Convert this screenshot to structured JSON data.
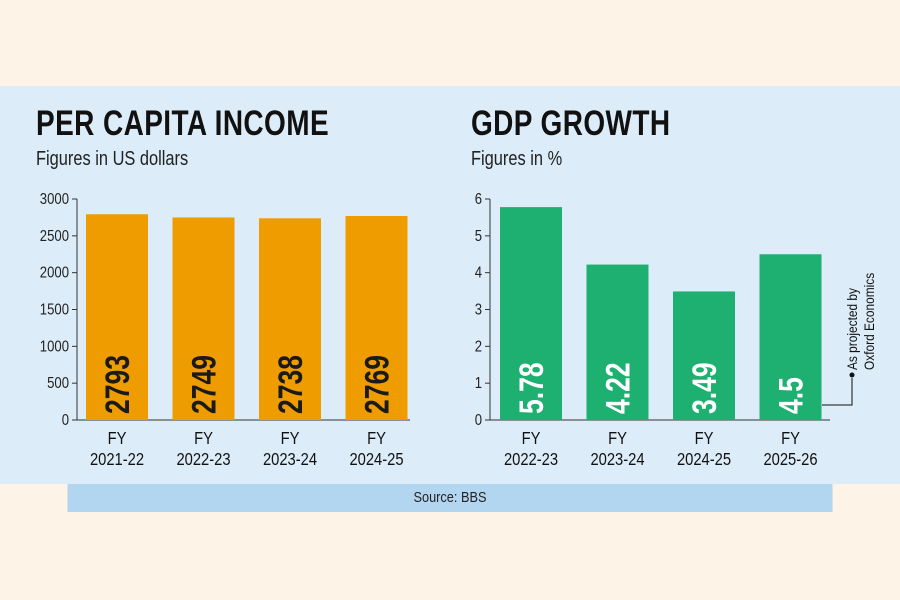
{
  "source": "Source: BBS",
  "colors": {
    "income_bar": "#ef9c00",
    "gdp_bar": "#1eb070",
    "panel": "#dcecf8",
    "page": "#fdf3e7",
    "source_bar": "#b3d6f0"
  },
  "chart_data": [
    {
      "type": "bar",
      "title": "PER CAPITA INCOME",
      "subtitle": "Figures in US dollars",
      "categories": [
        "FY\n2021-22",
        "FY\n2022-23",
        "FY\n2023-24",
        "FY\n2024-25"
      ],
      "values": [
        2793,
        2749,
        2738,
        2769
      ],
      "data_labels": [
        "2793",
        "2749",
        "2738",
        "2769"
      ],
      "yticks": [
        "0",
        "500",
        "1000",
        "1500",
        "2000",
        "2500",
        "3000"
      ],
      "ylim": [
        0,
        3000
      ],
      "grid": false,
      "legend": "none"
    },
    {
      "type": "bar",
      "title": "GDP GROWTH",
      "subtitle": "Figures in %",
      "categories": [
        "FY\n2022-23",
        "FY\n2023-24",
        "FY\n2024-25",
        "FY\n2025-26"
      ],
      "values": [
        5.78,
        4.22,
        3.49,
        4.5
      ],
      "data_labels": [
        "5.78",
        "4.22",
        "3.49",
        "4.5"
      ],
      "yticks": [
        "0",
        "1",
        "2",
        "3",
        "4",
        "5",
        "6"
      ],
      "ylim": [
        0,
        6
      ],
      "grid": false,
      "legend": "none",
      "annotation": {
        "line1": "As projected by",
        "line2": "Oxford Economics"
      }
    }
  ]
}
